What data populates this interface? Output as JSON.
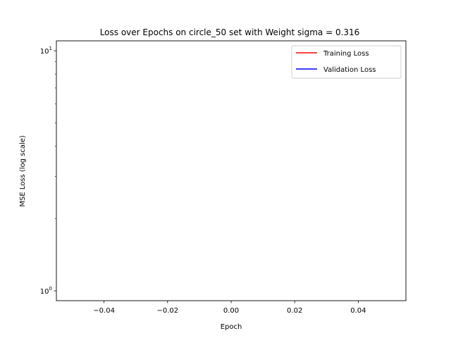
{
  "chart_data": {
    "type": "line",
    "title": "Loss over Epochs on circle_50 set with Weight sigma = 0.316",
    "xlabel": "Epoch",
    "ylabel": "MSE Loss (log scale)",
    "y_scale": "log",
    "xlim": [
      -0.055,
      0.055
    ],
    "ylim": [
      0.91,
      11.0
    ],
    "x_ticks": [
      -0.04,
      -0.02,
      0.0,
      0.02,
      0.04
    ],
    "x_tick_labels": [
      "−0.04",
      "−0.02",
      "0.00",
      "0.02",
      "0.04"
    ],
    "y_major_ticks": [
      1,
      10
    ],
    "y_tick_labels": [
      {
        "base": "10",
        "exp": "0"
      },
      {
        "base": "10",
        "exp": "1"
      }
    ],
    "y_minor_ticks": [
      2,
      3,
      4,
      5,
      6,
      7,
      8,
      9
    ],
    "grid": false,
    "legend_position": "top-right",
    "series": [
      {
        "name": "Training Loss",
        "color": "#ff0000",
        "x": [],
        "y": []
      },
      {
        "name": "Validation Loss",
        "color": "#0000ff",
        "x": [],
        "y": []
      }
    ]
  }
}
